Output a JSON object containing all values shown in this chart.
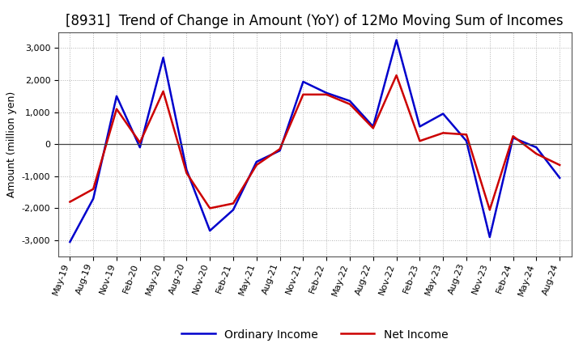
{
  "title": "[8931]  Trend of Change in Amount (YoY) of 12Mo Moving Sum of Incomes",
  "ylabel": "Amount (million yen)",
  "x_labels": [
    "May-19",
    "Aug-19",
    "Nov-19",
    "Feb-20",
    "May-20",
    "Aug-20",
    "Nov-20",
    "Feb-21",
    "May-21",
    "Aug-21",
    "Nov-21",
    "Feb-22",
    "May-22",
    "Aug-22",
    "Nov-22",
    "Feb-23",
    "May-23",
    "Aug-23",
    "Nov-23",
    "Feb-24",
    "May-24",
    "Aug-24"
  ],
  "ordinary_income": [
    -3050,
    -1700,
    1500,
    -100,
    2700,
    -800,
    -2700,
    -2050,
    -550,
    -200,
    1950,
    1600,
    1350,
    550,
    3250,
    550,
    950,
    100,
    -2900,
    200,
    -100,
    -1050
  ],
  "net_income": [
    -1800,
    -1400,
    1100,
    50,
    1650,
    -900,
    -2000,
    -1850,
    -650,
    -150,
    1550,
    1550,
    1250,
    500,
    2150,
    100,
    350,
    300,
    -2050,
    250,
    -300,
    -650
  ],
  "ordinary_income_color": "#0000cc",
  "net_income_color": "#cc0000",
  "ylim": [
    -3500,
    3500
  ],
  "yticks": [
    -3000,
    -2000,
    -1000,
    0,
    1000,
    2000,
    3000
  ],
  "background_color": "#ffffff",
  "plot_bg_color": "#ffffff",
  "grid_color": "#aaaaaa",
  "line_width": 1.8,
  "title_fontsize": 12,
  "legend_fontsize": 10,
  "tick_fontsize": 8
}
